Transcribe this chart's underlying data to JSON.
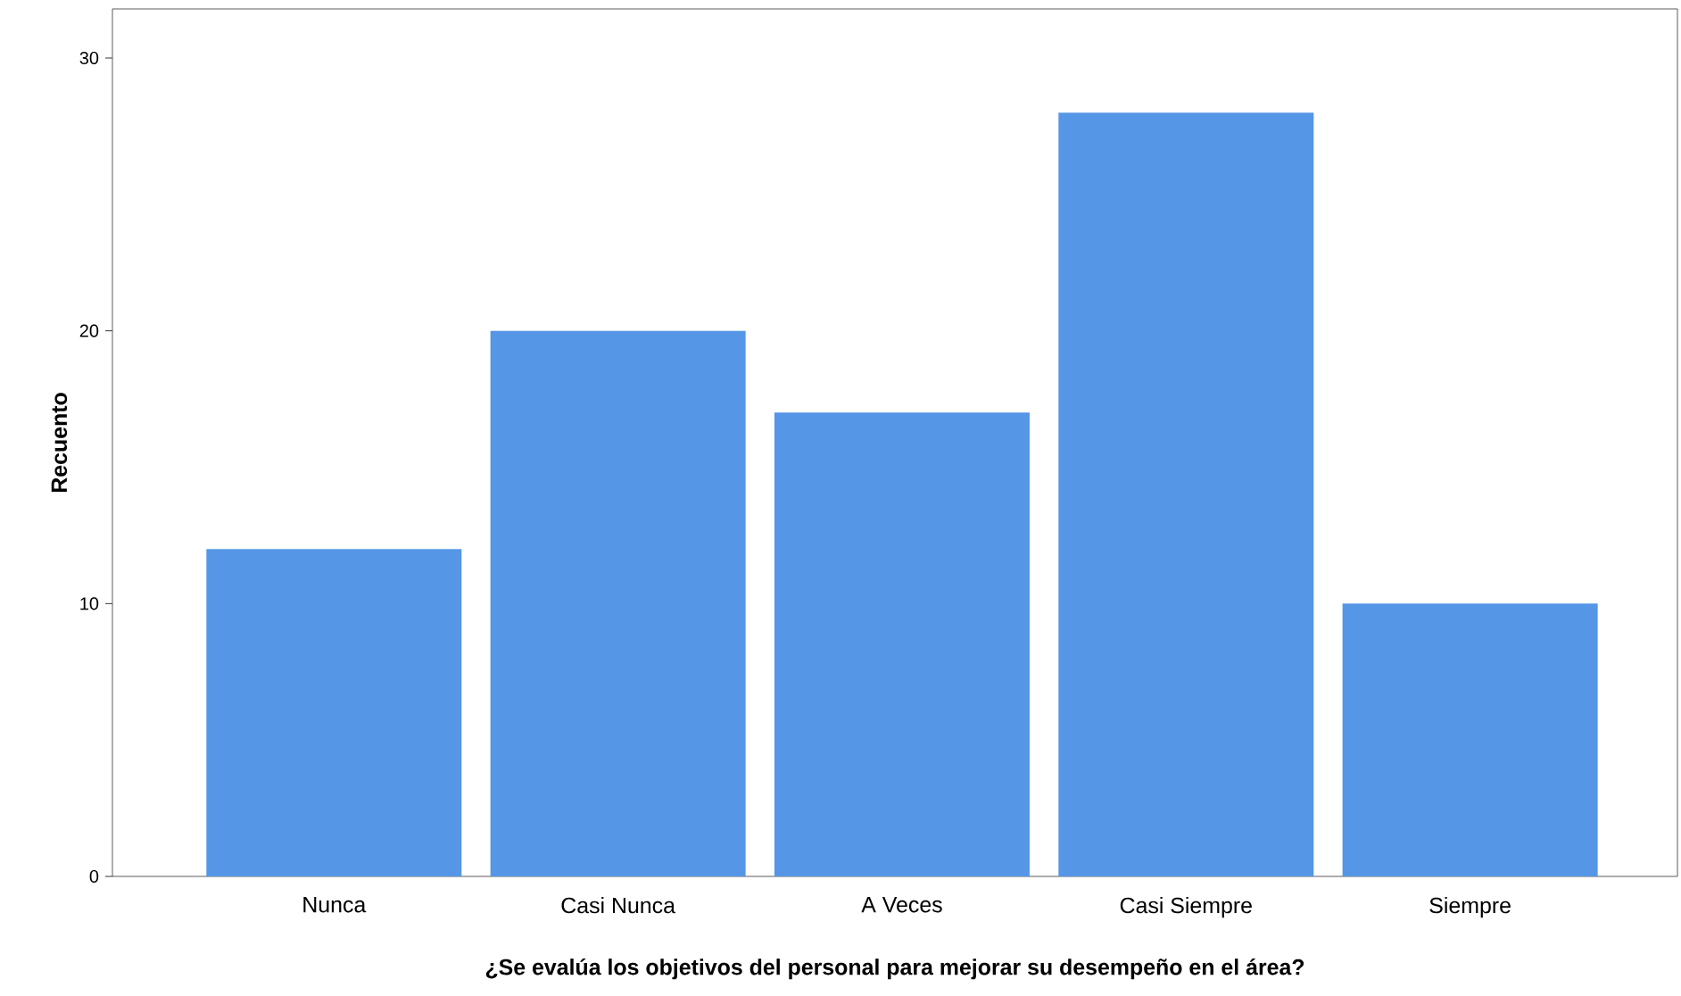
{
  "chart_data": {
    "type": "bar",
    "xlabel": "¿Se evalúa los objetivos del personal para mejorar su desempeño en el área?",
    "ylabel": "Recuento",
    "categories": [
      "Nunca",
      "Casi Nunca",
      "A Veces",
      "Casi Siempre",
      "Siempre"
    ],
    "values": [
      12,
      20,
      17,
      28,
      10
    ],
    "color": "#5596e6",
    "ylim": [
      0,
      31.8
    ],
    "yticks": [
      0,
      10,
      20,
      30
    ]
  }
}
